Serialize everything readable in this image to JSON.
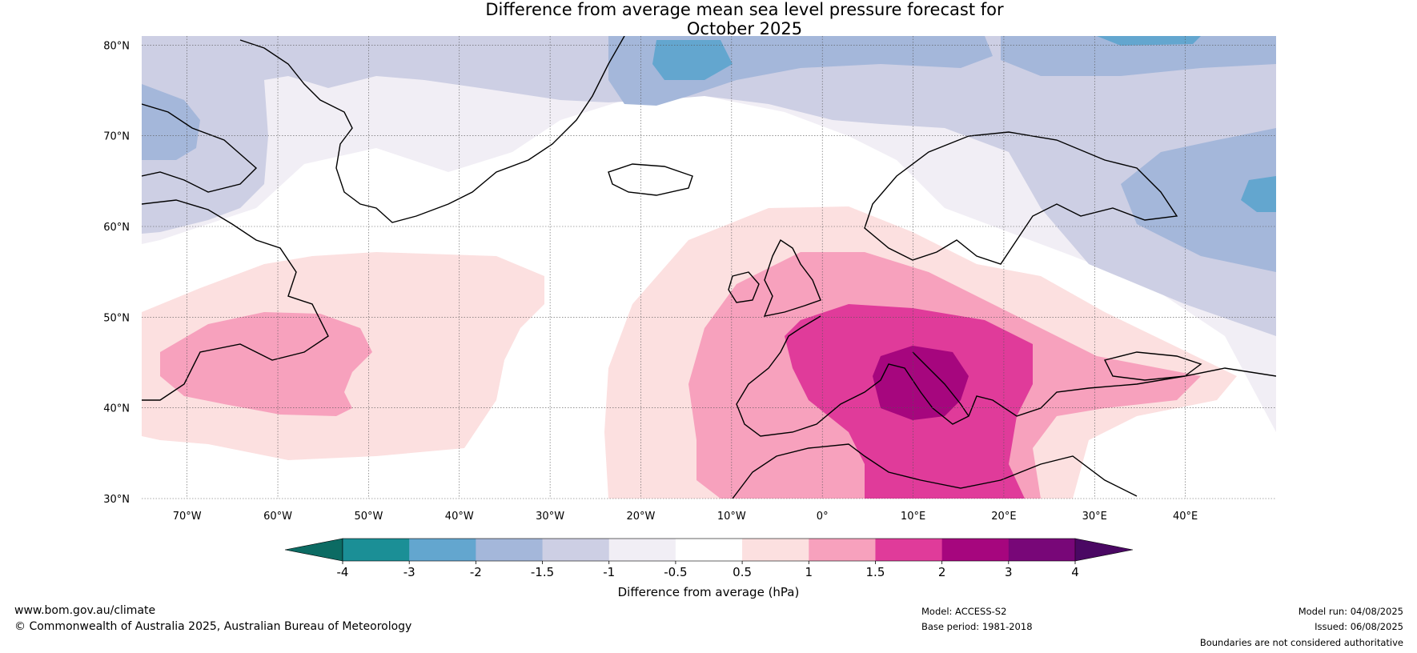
{
  "title": {
    "line1": "Difference from average mean sea level pressure forecast for",
    "line2": "October 2025"
  },
  "map": {
    "lat_labels": [
      "80°N",
      "70°N",
      "60°N",
      "50°N",
      "40°N",
      "30°N"
    ],
    "lat_values": [
      80,
      70,
      60,
      50,
      40,
      30
    ],
    "lon_labels": [
      "70°W",
      "60°W",
      "50°W",
      "40°W",
      "30°W",
      "20°W",
      "10°W",
      "0°",
      "10°E",
      "20°E",
      "30°E",
      "40°E"
    ],
    "lon_values": [
      -70,
      -60,
      -50,
      -40,
      -30,
      -20,
      -10,
      0,
      10,
      20,
      30,
      40
    ],
    "extent": {
      "lon_min": -75,
      "lon_max": 50,
      "lat_min": 30,
      "lat_max": 81
    }
  },
  "colorbar": {
    "ticks": [
      "-4",
      "-3",
      "-2",
      "-1.5",
      "-1",
      "-0.5",
      "0.5",
      "1",
      "1.5",
      "2",
      "3",
      "4"
    ],
    "colors": [
      "#1b8f96",
      "#63a6cf",
      "#a4b7da",
      "#cdcfe4",
      "#f1eef5",
      "#ffffff",
      "#fce0e0",
      "#f7a1bd",
      "#e03b9a",
      "#a6067e",
      "#780778"
    ],
    "low_extend_color": "#0c6b63",
    "high_extend_color": "#4a0863",
    "label": "Difference from average (hPa)"
  },
  "footer": {
    "site": "www.bom.gov.au/climate",
    "copyright": "© Commonwealth of Australia 2025, Australian Bureau of Meteorology",
    "model": "Model: ACCESS-S2",
    "base_period": "Base period: 1981-2018",
    "model_run": "Model run: 04/08/2025",
    "issued": "Issued: 06/08/2025",
    "disclaimer": "Boundaries are not considered authoritative"
  }
}
